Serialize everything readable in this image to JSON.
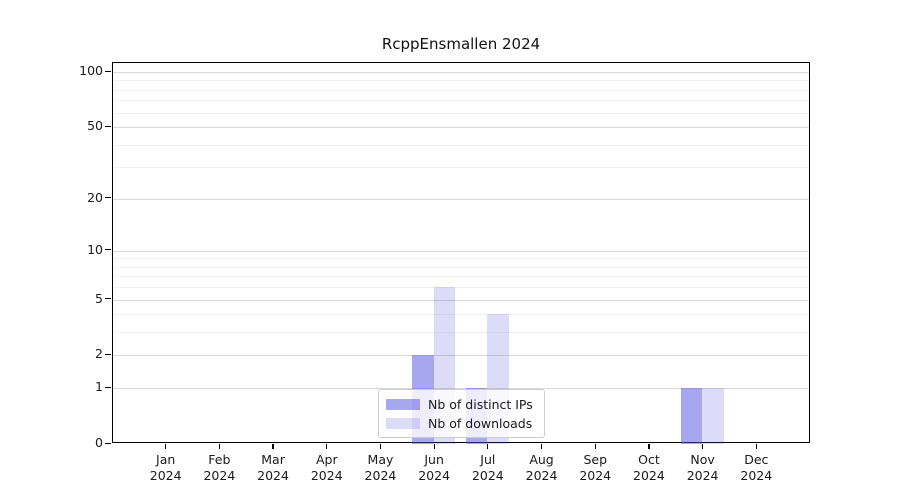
{
  "chart_data": {
    "type": "bar",
    "title": "RcppEnsmallen 2024",
    "year": "2024",
    "categories": [
      "Jan",
      "Feb",
      "Mar",
      "Apr",
      "May",
      "Jun",
      "Jul",
      "Aug",
      "Sep",
      "Oct",
      "Nov",
      "Dec"
    ],
    "series": [
      {
        "name": "Nb of distinct IPs",
        "values": [
          0,
          0,
          0,
          0,
          0,
          2,
          1,
          0,
          0,
          0,
          1,
          0
        ],
        "color": "rgba(80,80,220,0.5)"
      },
      {
        "name": "Nb of downloads",
        "values": [
          0,
          0,
          0,
          0,
          0,
          6,
          4,
          0,
          0,
          0,
          1,
          0
        ],
        "color": "rgba(80,80,220,0.2)"
      }
    ],
    "xlabel": "",
    "ylabel": "",
    "yscale": "log1p",
    "ylim": [
      0,
      112
    ],
    "y_ticks": [
      0,
      1,
      2,
      5,
      10,
      20,
      50,
      100
    ],
    "y_minor_gridlines": [
      3,
      4,
      6,
      7,
      8,
      9,
      30,
      40,
      60,
      70,
      80,
      90
    ],
    "grid": true,
    "legend_position": "lower center"
  },
  "colors": {
    "major_grid": "#d9d9d9",
    "minor_grid": "#f0f0f0",
    "spine": "#000000",
    "text": "#1a1a1a",
    "legend_border": "#cccccc"
  }
}
